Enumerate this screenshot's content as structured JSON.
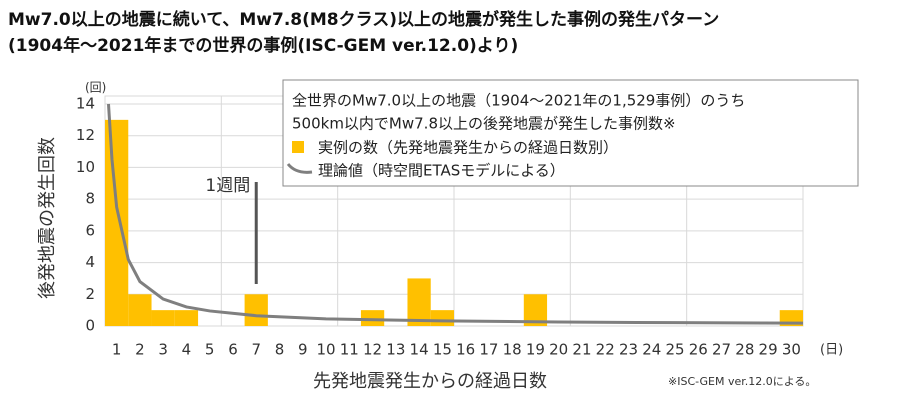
{
  "chart_data": {
    "type": "bar",
    "title": "Mw7.0以上の地震に続いて、Mw7.8(M8クラス)以上の地震が発生した事例の発生パターン",
    "subtitle": "(1904年～2021年までの世界の事例(ISC-GEM ver.12.0)より)",
    "y_label": "後発地震の発生回数",
    "x_label": "先発地震発生からの経過日数",
    "y_unit": "(回)",
    "x_unit": "(日)",
    "legend_title": [
      "全世界のMw7.0以上の地震（1904～2021年の1,529事例）のうち",
      "500km以内でMw7.8以上の後発地震が発生した事例数※"
    ],
    "annotation": "1週間",
    "note": "※ISC-GEM ver.12.0による。",
    "categories": [
      "1",
      "2",
      "3",
      "4",
      "5",
      "6",
      "7",
      "8",
      "9",
      "10",
      "11",
      "12",
      "13",
      "14",
      "15",
      "16",
      "17",
      "18",
      "19",
      "20",
      "21",
      "22",
      "23",
      "24",
      "25",
      "26",
      "27",
      "28",
      "29",
      "30"
    ],
    "series": [
      {
        "name": "実例の数（先発地震発生からの経過日数別）",
        "type": "bar",
        "color": "#ffc000",
        "values": [
          13,
          2,
          1,
          1,
          0,
          0,
          2,
          0,
          0,
          0,
          0,
          1,
          0,
          3,
          1,
          0,
          0,
          0,
          2,
          0,
          0,
          0,
          0,
          0,
          0,
          0,
          0,
          0,
          0,
          1
        ]
      },
      {
        "name": "理論値（時空間ETASモデルによる）",
        "type": "line",
        "color": "#7f7f7f",
        "x": [
          0.65,
          0.8,
          1,
          1.5,
          2,
          3,
          4,
          5,
          7,
          10,
          15,
          20,
          25,
          30.5
        ],
        "values": [
          14,
          10.5,
          7.5,
          4.2,
          2.8,
          1.7,
          1.2,
          0.95,
          0.65,
          0.45,
          0.32,
          0.25,
          0.21,
          0.18
        ]
      }
    ],
    "ylim": [
      0,
      14
    ],
    "yticks": [
      0,
      2,
      4,
      6,
      8,
      10,
      12,
      14
    ],
    "grid": true
  }
}
